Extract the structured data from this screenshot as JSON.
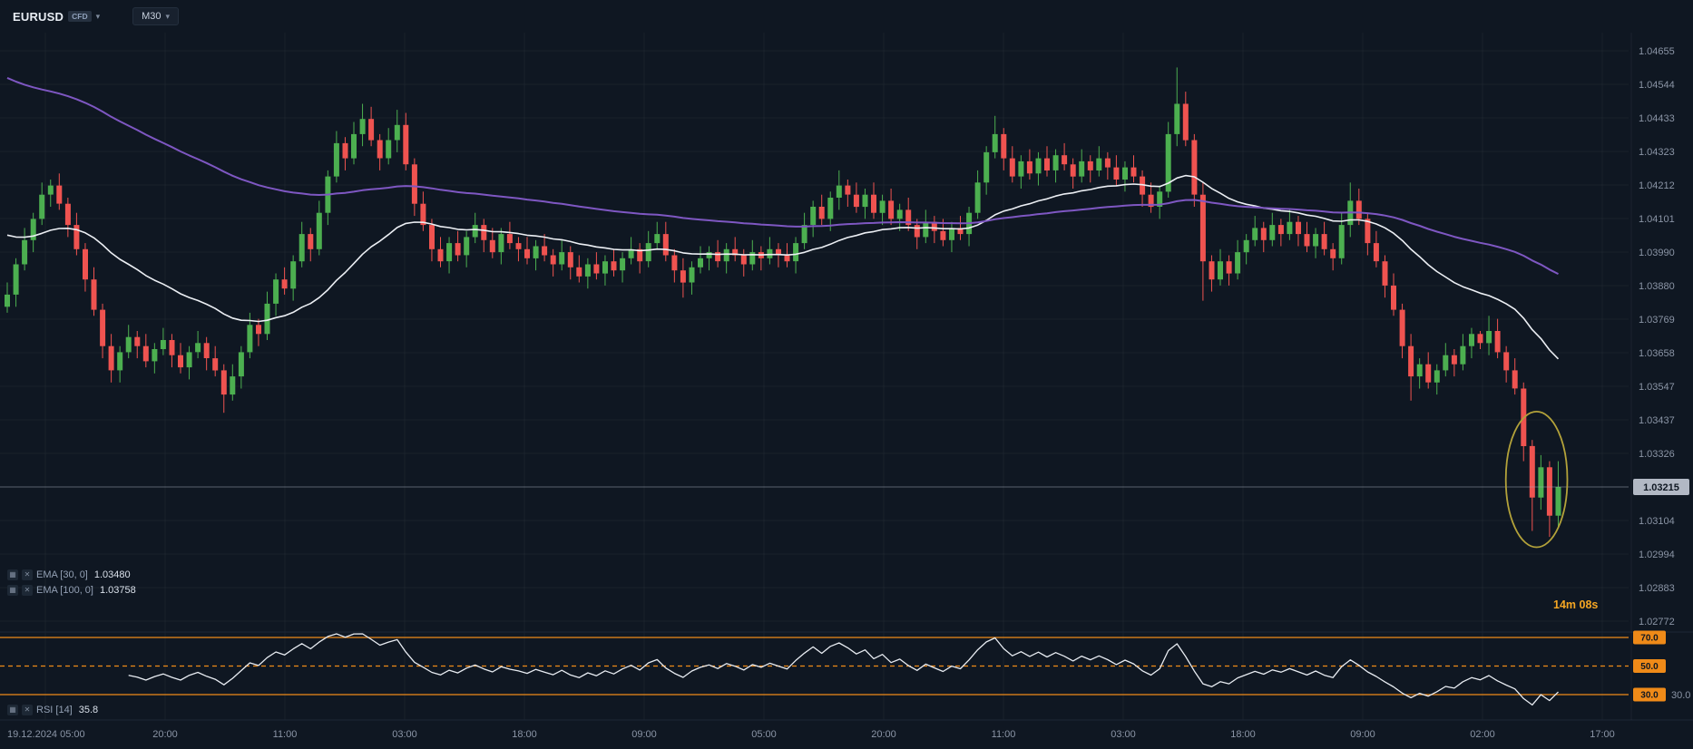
{
  "topbar": {
    "symbol": "EURUSD",
    "symbol_type_badge": "CFD",
    "timeframe": "M30"
  },
  "indicator_legends": {
    "ema30": {
      "label": "EMA [30, 0]",
      "value": "1.03480"
    },
    "ema100": {
      "label": "EMA [100, 0]",
      "value": "1.03758"
    },
    "rsi": {
      "label": "RSI [14]",
      "value": "35.8"
    }
  },
  "countdown_timer": "14m 08s",
  "price_axis": {
    "labels": [
      "1.04655",
      "1.04544",
      "1.04433",
      "1.04323",
      "1.04212",
      "1.04101",
      "1.03990",
      "1.03880",
      "1.03769",
      "1.03658",
      "1.03547",
      "1.03437",
      "1.03326",
      "1.03215",
      "1.03104",
      "1.02994",
      "1.02883",
      "1.02772"
    ],
    "current_price": "1.03215"
  },
  "time_axis": {
    "labels": [
      "19.12.2024 05:00",
      "20:00",
      "11:00",
      "03:00",
      "18:00",
      "09:00",
      "05:00",
      "20:00",
      "11:00",
      "03:00",
      "18:00",
      "09:00",
      "02:00",
      "17:00"
    ]
  },
  "rsi_pane": {
    "levels": [
      {
        "value": 70,
        "label": "70.0",
        "dashed": false
      },
      {
        "value": 50,
        "label": "50.0",
        "dashed": true
      },
      {
        "value": 30,
        "label": "30.0",
        "dashed": false
      }
    ],
    "scale_label": "30.0"
  },
  "colors": {
    "background": "#0f1722",
    "up": "#4caf50",
    "down": "#ef5350",
    "ema30": "#eceff4",
    "ema100": "#7e57c2",
    "rsi_line": "#e8ecf2",
    "level_orange": "#ef8a18",
    "timer": "#f5a623",
    "axis_text": "#8b95a6",
    "current_price_badge": "#b2b8c4",
    "annotation": "#b3a23a"
  },
  "chart_data": {
    "type": "candlestick",
    "symbol": "EURUSD",
    "timeframe": "M30",
    "title": "EURUSD CFD M30 candlestick chart with EMA 30, EMA 100 and RSI 14",
    "y_axis": {
      "min": 1.02772,
      "max": 1.04655,
      "tick_step": 0.00111
    },
    "x_axis_labels": [
      "19.12.2024 05:00",
      "20:00",
      "11:00",
      "03:00",
      "18:00",
      "09:00",
      "05:00",
      "20:00",
      "11:00",
      "03:00",
      "18:00",
      "09:00",
      "02:00",
      "17:00"
    ],
    "current_price": 1.03215,
    "overlays": [
      {
        "name": "EMA 30",
        "period": 30,
        "seed": 1.0406,
        "color_key": "ema30",
        "last_value": 1.0348
      },
      {
        "name": "EMA 100",
        "period": 100,
        "seed": 1.0458,
        "color_key": "ema100",
        "last_value": 1.03758
      }
    ],
    "lower_pane": {
      "type": "rsi",
      "period": 14,
      "range": [
        0,
        100
      ],
      "levels": [
        70,
        50,
        30
      ],
      "last_value": 35.8
    },
    "annotation_ellipse": {
      "candle_start": 174,
      "candle_end": 179,
      "price_high": 1.0344,
      "price_low": 1.0304
    },
    "candles": [
      [
        1.0381,
        1.0389,
        1.0379,
        1.0385
      ],
      [
        1.0385,
        1.0397,
        1.0381,
        1.0395
      ],
      [
        1.0395,
        1.0407,
        1.0393,
        1.0403
      ],
      [
        1.0403,
        1.0412,
        1.0399,
        1.041
      ],
      [
        1.041,
        1.0422,
        1.0408,
        1.0418
      ],
      [
        1.0418,
        1.0423,
        1.0414,
        1.0421
      ],
      [
        1.0421,
        1.0425,
        1.0413,
        1.0415
      ],
      [
        1.0415,
        1.0417,
        1.0404,
        1.0408
      ],
      [
        1.0408,
        1.0412,
        1.0398,
        1.04
      ],
      [
        1.04,
        1.0402,
        1.0386,
        1.039
      ],
      [
        1.039,
        1.0394,
        1.0378,
        1.038
      ],
      [
        1.038,
        1.0382,
        1.0364,
        1.0368
      ],
      [
        1.0368,
        1.0372,
        1.0356,
        1.036
      ],
      [
        1.036,
        1.0368,
        1.0356,
        1.0366
      ],
      [
        1.0366,
        1.0375,
        1.0364,
        1.0371
      ],
      [
        1.0371,
        1.0373,
        1.0364,
        1.0368
      ],
      [
        1.0368,
        1.0372,
        1.0361,
        1.0363
      ],
      [
        1.0363,
        1.0369,
        1.0359,
        1.0367
      ],
      [
        1.0367,
        1.0374,
        1.0365,
        1.037
      ],
      [
        1.037,
        1.0372,
        1.0361,
        1.0365
      ],
      [
        1.0365,
        1.0369,
        1.0359,
        1.0361
      ],
      [
        1.0361,
        1.0368,
        1.0357,
        1.0366
      ],
      [
        1.0366,
        1.0373,
        1.0364,
        1.0369
      ],
      [
        1.0369,
        1.0371,
        1.036,
        1.0364
      ],
      [
        1.0364,
        1.0368,
        1.0358,
        1.036
      ],
      [
        1.036,
        1.0362,
        1.0346,
        1.0352
      ],
      [
        1.0352,
        1.0362,
        1.035,
        1.0358
      ],
      [
        1.0358,
        1.0368,
        1.0354,
        1.0366
      ],
      [
        1.0366,
        1.0379,
        1.0364,
        1.0375
      ],
      [
        1.0375,
        1.0377,
        1.0368,
        1.0372
      ],
      [
        1.0372,
        1.0386,
        1.037,
        1.0382
      ],
      [
        1.0382,
        1.0392,
        1.0378,
        1.039
      ],
      [
        1.039,
        1.0394,
        1.0385,
        1.0387
      ],
      [
        1.0387,
        1.0398,
        1.0383,
        1.0396
      ],
      [
        1.0396,
        1.0409,
        1.0394,
        1.0405
      ],
      [
        1.0405,
        1.0407,
        1.0396,
        1.04
      ],
      [
        1.04,
        1.0416,
        1.0398,
        1.0412
      ],
      [
        1.0412,
        1.0426,
        1.0408,
        1.0424
      ],
      [
        1.0424,
        1.0439,
        1.0422,
        1.0435
      ],
      [
        1.0435,
        1.0437,
        1.0426,
        1.043
      ],
      [
        1.043,
        1.0442,
        1.0428,
        1.0438
      ],
      [
        1.0438,
        1.0448,
        1.0434,
        1.0443
      ],
      [
        1.0443,
        1.0447,
        1.0434,
        1.0436
      ],
      [
        1.0436,
        1.0438,
        1.0426,
        1.043
      ],
      [
        1.043,
        1.044,
        1.0428,
        1.0436
      ],
      [
        1.0436,
        1.0446,
        1.0432,
        1.0441
      ],
      [
        1.0441,
        1.0445,
        1.0426,
        1.0428
      ],
      [
        1.0428,
        1.043,
        1.0411,
        1.0415
      ],
      [
        1.0415,
        1.0419,
        1.0406,
        1.0408
      ],
      [
        1.0408,
        1.041,
        1.0396,
        1.04
      ],
      [
        1.04,
        1.0404,
        1.0394,
        1.0396
      ],
      [
        1.0396,
        1.0404,
        1.0392,
        1.0402
      ],
      [
        1.0402,
        1.0406,
        1.0396,
        1.0398
      ],
      [
        1.0398,
        1.0406,
        1.0394,
        1.0404
      ],
      [
        1.0404,
        1.0412,
        1.0402,
        1.0408
      ],
      [
        1.0408,
        1.041,
        1.0399,
        1.0403
      ],
      [
        1.0403,
        1.0407,
        1.0397,
        1.0399
      ],
      [
        1.0399,
        1.0407,
        1.0395,
        1.0405
      ],
      [
        1.0405,
        1.0409,
        1.04,
        1.0402
      ],
      [
        1.0402,
        1.0404,
        1.0396,
        1.04
      ],
      [
        1.04,
        1.0404,
        1.0395,
        1.0397
      ],
      [
        1.0397,
        1.0403,
        1.0393,
        1.0401
      ],
      [
        1.0401,
        1.0405,
        1.0396,
        1.0398
      ],
      [
        1.0398,
        1.04,
        1.0391,
        1.0395
      ],
      [
        1.0395,
        1.0403,
        1.0393,
        1.0399
      ],
      [
        1.0399,
        1.0401,
        1.039,
        1.0394
      ],
      [
        1.0394,
        1.0398,
        1.0389,
        1.0391
      ],
      [
        1.0391,
        1.0397,
        1.0387,
        1.0395
      ],
      [
        1.0395,
        1.0399,
        1.039,
        1.0392
      ],
      [
        1.0392,
        1.0398,
        1.0388,
        1.0396
      ],
      [
        1.0396,
        1.04,
        1.0391,
        1.0393
      ],
      [
        1.0393,
        1.0399,
        1.0389,
        1.0397
      ],
      [
        1.0397,
        1.0404,
        1.0395,
        1.04
      ],
      [
        1.04,
        1.0402,
        1.0392,
        1.0396
      ],
      [
        1.0396,
        1.0406,
        1.0394,
        1.0402
      ],
      [
        1.0402,
        1.0409,
        1.04,
        1.0405
      ],
      [
        1.0405,
        1.0409,
        1.0396,
        1.0398
      ],
      [
        1.0398,
        1.04,
        1.0389,
        1.0393
      ],
      [
        1.0393,
        1.0397,
        1.0384,
        1.0389
      ],
      [
        1.0389,
        1.0396,
        1.0385,
        1.0394
      ],
      [
        1.0394,
        1.0401,
        1.0392,
        1.0397
      ],
      [
        1.0397,
        1.0401,
        1.0393,
        1.0399
      ],
      [
        1.0399,
        1.0403,
        1.0394,
        1.0396
      ],
      [
        1.0396,
        1.0402,
        1.0392,
        1.04
      ],
      [
        1.04,
        1.0404,
        1.0396,
        1.0398
      ],
      [
        1.0398,
        1.04,
        1.0391,
        1.0395
      ],
      [
        1.0395,
        1.0403,
        1.0393,
        1.0399
      ],
      [
        1.0399,
        1.0401,
        1.0393,
        1.0397
      ],
      [
        1.0397,
        1.0404,
        1.0395,
        1.04
      ],
      [
        1.04,
        1.0402,
        1.0394,
        1.0398
      ],
      [
        1.0398,
        1.0402,
        1.0394,
        1.0396
      ],
      [
        1.0396,
        1.0404,
        1.0392,
        1.0402
      ],
      [
        1.0402,
        1.0412,
        1.04,
        1.0408
      ],
      [
        1.0408,
        1.0416,
        1.0404,
        1.0414
      ],
      [
        1.0414,
        1.0418,
        1.0408,
        1.041
      ],
      [
        1.041,
        1.0419,
        1.0406,
        1.0417
      ],
      [
        1.0417,
        1.0426,
        1.0413,
        1.0421
      ],
      [
        1.0421,
        1.0423,
        1.0414,
        1.0418
      ],
      [
        1.0418,
        1.0422,
        1.0412,
        1.0414
      ],
      [
        1.0414,
        1.042,
        1.041,
        1.0418
      ],
      [
        1.0418,
        1.0422,
        1.041,
        1.0412
      ],
      [
        1.0412,
        1.0418,
        1.0408,
        1.0416
      ],
      [
        1.0416,
        1.042,
        1.0408,
        1.041
      ],
      [
        1.041,
        1.0415,
        1.0406,
        1.0413
      ],
      [
        1.0413,
        1.0417,
        1.0406,
        1.0408
      ],
      [
        1.0408,
        1.041,
        1.04,
        1.0404
      ],
      [
        1.0404,
        1.0413,
        1.0402,
        1.0409
      ],
      [
        1.0409,
        1.0411,
        1.0402,
        1.0406
      ],
      [
        1.0406,
        1.041,
        1.0401,
        1.0403
      ],
      [
        1.0403,
        1.0409,
        1.0399,
        1.0407
      ],
      [
        1.0407,
        1.0411,
        1.0403,
        1.0405
      ],
      [
        1.0405,
        1.0414,
        1.0401,
        1.0412
      ],
      [
        1.0412,
        1.0426,
        1.041,
        1.0422
      ],
      [
        1.0422,
        1.0434,
        1.0418,
        1.0432
      ],
      [
        1.0432,
        1.0444,
        1.043,
        1.0438
      ],
      [
        1.0438,
        1.044,
        1.0426,
        1.043
      ],
      [
        1.043,
        1.0434,
        1.0422,
        1.0424
      ],
      [
        1.0424,
        1.0431,
        1.042,
        1.0429
      ],
      [
        1.0429,
        1.0433,
        1.0423,
        1.0425
      ],
      [
        1.0425,
        1.0432,
        1.0421,
        1.043
      ],
      [
        1.043,
        1.0434,
        1.0424,
        1.0426
      ],
      [
        1.0426,
        1.0433,
        1.0422,
        1.0431
      ],
      [
        1.0431,
        1.0435,
        1.0426,
        1.0428
      ],
      [
        1.0428,
        1.043,
        1.042,
        1.0424
      ],
      [
        1.0424,
        1.0433,
        1.0422,
        1.0429
      ],
      [
        1.0429,
        1.0431,
        1.0422,
        1.0426
      ],
      [
        1.0426,
        1.0434,
        1.0424,
        1.043
      ],
      [
        1.043,
        1.0432,
        1.0423,
        1.0427
      ],
      [
        1.0427,
        1.0431,
        1.0421,
        1.0423
      ],
      [
        1.0423,
        1.0429,
        1.0419,
        1.0427
      ],
      [
        1.0427,
        1.0431,
        1.0422,
        1.0424
      ],
      [
        1.0424,
        1.0426,
        1.0414,
        1.0418
      ],
      [
        1.0418,
        1.0422,
        1.0412,
        1.0414
      ],
      [
        1.0414,
        1.0421,
        1.041,
        1.0419
      ],
      [
        1.0419,
        1.0442,
        1.0417,
        1.0438
      ],
      [
        1.0438,
        1.046,
        1.0434,
        1.0448
      ],
      [
        1.0448,
        1.0452,
        1.0434,
        1.0436
      ],
      [
        1.0436,
        1.0438,
        1.0414,
        1.0418
      ],
      [
        1.0418,
        1.0422,
        1.0383,
        1.0396
      ],
      [
        1.0396,
        1.0398,
        1.0386,
        1.039
      ],
      [
        1.039,
        1.04,
        1.0388,
        1.0396
      ],
      [
        1.0396,
        1.0398,
        1.0388,
        1.0392
      ],
      [
        1.0392,
        1.0403,
        1.039,
        1.0399
      ],
      [
        1.0399,
        1.0405,
        1.0395,
        1.0403
      ],
      [
        1.0403,
        1.0411,
        1.0401,
        1.0407
      ],
      [
        1.0407,
        1.0409,
        1.0399,
        1.0403
      ],
      [
        1.0403,
        1.0412,
        1.0401,
        1.0408
      ],
      [
        1.0408,
        1.041,
        1.0401,
        1.0405
      ],
      [
        1.0405,
        1.0413,
        1.0403,
        1.0409
      ],
      [
        1.0409,
        1.0411,
        1.0401,
        1.0405
      ],
      [
        1.0405,
        1.0409,
        1.0399,
        1.0401
      ],
      [
        1.0401,
        1.0407,
        1.0397,
        1.0405
      ],
      [
        1.0405,
        1.0409,
        1.0398,
        1.04
      ],
      [
        1.04,
        1.0402,
        1.0393,
        1.0397
      ],
      [
        1.0397,
        1.0412,
        1.0395,
        1.0408
      ],
      [
        1.0408,
        1.0422,
        1.0404,
        1.0416
      ],
      [
        1.0416,
        1.042,
        1.0408,
        1.041
      ],
      [
        1.041,
        1.0412,
        1.0398,
        1.0402
      ],
      [
        1.0402,
        1.0406,
        1.0394,
        1.0396
      ],
      [
        1.0396,
        1.0398,
        1.0384,
        1.0388
      ],
      [
        1.0388,
        1.0392,
        1.0378,
        1.038
      ],
      [
        1.038,
        1.0382,
        1.0364,
        1.0368
      ],
      [
        1.0368,
        1.0372,
        1.035,
        1.0358
      ],
      [
        1.0358,
        1.0364,
        1.0354,
        1.0362
      ],
      [
        1.0362,
        1.0366,
        1.0354,
        1.0356
      ],
      [
        1.0356,
        1.0362,
        1.0352,
        1.036
      ],
      [
        1.036,
        1.0369,
        1.0358,
        1.0365
      ],
      [
        1.0365,
        1.0367,
        1.0358,
        1.0362
      ],
      [
        1.0362,
        1.0372,
        1.036,
        1.0368
      ],
      [
        1.0368,
        1.0374,
        1.0364,
        1.0372
      ],
      [
        1.0372,
        1.0373,
        1.0367,
        1.0369
      ],
      [
        1.0369,
        1.0378,
        1.0365,
        1.0373
      ],
      [
        1.0373,
        1.0377,
        1.0364,
        1.0366
      ],
      [
        1.0366,
        1.0368,
        1.0356,
        1.036
      ],
      [
        1.036,
        1.0364,
        1.0352,
        1.0354
      ],
      [
        1.0354,
        1.0356,
        1.033,
        1.0335
      ],
      [
        1.0335,
        1.0337,
        1.0307,
        1.0318
      ],
      [
        1.0318,
        1.0332,
        1.0314,
        1.0328
      ],
      [
        1.0328,
        1.033,
        1.0305,
        1.0312
      ],
      [
        1.0312,
        1.033,
        1.0308,
        1.03215
      ]
    ]
  }
}
